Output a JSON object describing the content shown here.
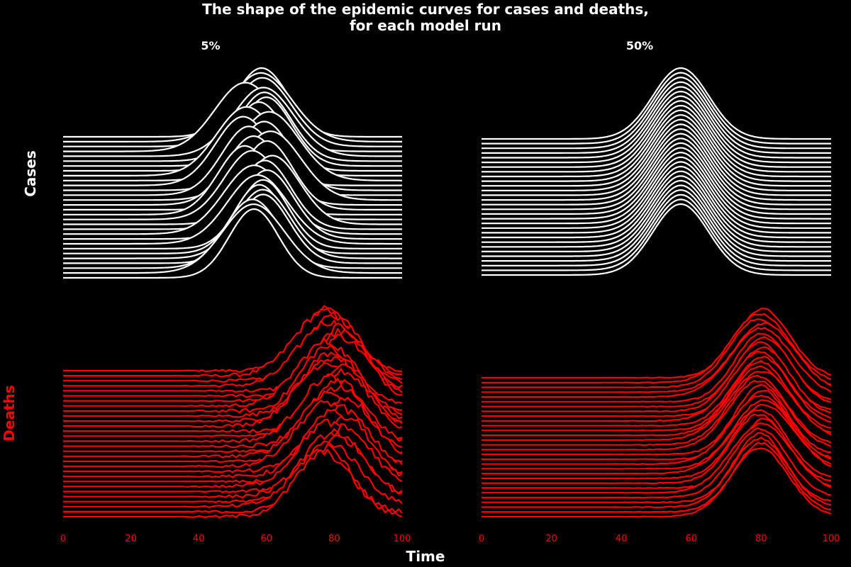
{
  "chart_data": {
    "type": "line",
    "title_line1": "The shape of the epidemic curves for cases and deaths,",
    "title_line2": "for each model run",
    "xlabel": "Time",
    "xlim": [
      0,
      100
    ],
    "xticks": [
      "0",
      "20",
      "40",
      "60",
      "80",
      "100"
    ],
    "columns": [
      "5%",
      "50%"
    ],
    "rows": [
      {
        "name": "Cases",
        "color": "#ffffff"
      },
      {
        "name": "Deaths",
        "color": "#ff0000"
      }
    ],
    "runs_per_panel": 30,
    "series_model": {
      "cases": {
        "peak_time": 57,
        "sd_time": 8,
        "relative_peak_height": 1.0
      },
      "deaths": {
        "peak_time": 80,
        "sd_time": 8,
        "relative_peak_height": 1.0,
        "noise": "high for 5%, low for 50%"
      }
    },
    "tick_color": "#ff0000"
  }
}
